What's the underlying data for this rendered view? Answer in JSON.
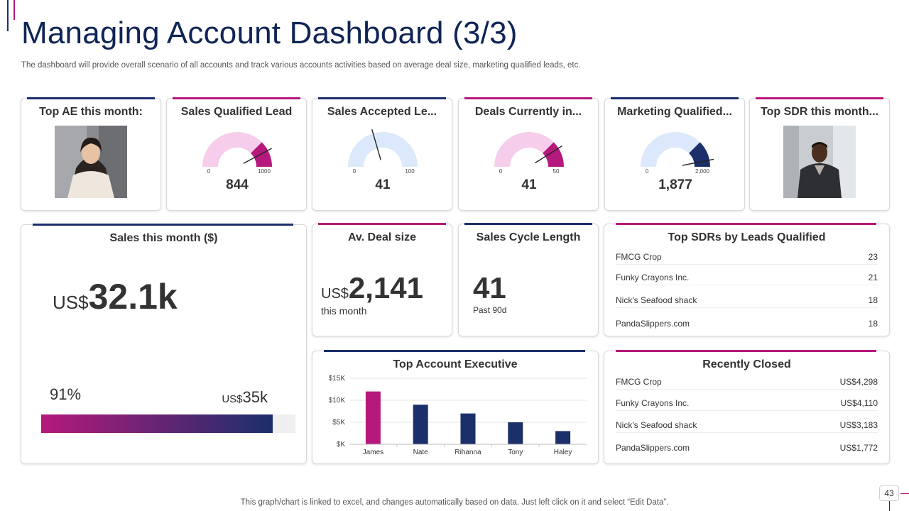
{
  "title": "Managing Account Dashboard (3/3)",
  "subtitle": "The dashboard will provide overall scenario of all accounts and track various accounts activities based on average deal size, marketing qualified leads, etc.",
  "colors": {
    "navy": "#1b2f6b",
    "pink": "#b5197c",
    "pink_light": "#f6cdea",
    "blue_light": "#dce8fb"
  },
  "top_ae": {
    "title": "Top AE this month:"
  },
  "sql": {
    "title": "Sales Qualified Lead",
    "value": "844",
    "min": "0",
    "max": "1000",
    "value_num": 844,
    "max_num": 1000
  },
  "sal": {
    "title": "Sales Accepted Le...",
    "value": "41",
    "min": "0",
    "max": "100",
    "value_num": 41,
    "max_num": 100
  },
  "deals": {
    "title": "Deals Currently in...",
    "value": "41",
    "min": "0",
    "max": "50",
    "value_num": 41,
    "max_num": 50
  },
  "mql": {
    "title": "Marketing Qualified...",
    "value": "1,877",
    "min": "0",
    "max": "2,000",
    "value_num": 1877,
    "max_num": 2000
  },
  "top_sdr": {
    "title": "Top SDR this month..."
  },
  "sales_month": {
    "title": "Sales this month ($)",
    "currency": "US$",
    "value": "32.1k",
    "percent": "91%",
    "percent_num": 91,
    "target_currency": "US$",
    "target": "35k"
  },
  "deal_size": {
    "title": "Av. Deal size",
    "currency": "US$",
    "value": "2,141",
    "sub": "this month"
  },
  "cycle": {
    "title": "Sales Cycle Length",
    "value": "41",
    "sub": "Past 90d"
  },
  "top_sdrs": {
    "title": "Top SDRs by Leads Qualified",
    "rows": [
      {
        "name": "FMCG Crop",
        "value": "23"
      },
      {
        "name": "Funky Crayons Inc.",
        "value": "21"
      },
      {
        "name": "Nick's Seafood shack",
        "value": "18"
      },
      {
        "name": "PandaSlippers.com",
        "value": "18"
      }
    ]
  },
  "recent": {
    "title": "Recently Closed",
    "rows": [
      {
        "name": "FMCG Crop",
        "value": "US$4,298"
      },
      {
        "name": "Funky Crayons Inc.",
        "value": "US$4,110"
      },
      {
        "name": "Nick's Seafood shack",
        "value": "US$3,183"
      },
      {
        "name": "PandaSlippers.com",
        "value": "US$1,772"
      }
    ]
  },
  "chart_data": {
    "type": "bar",
    "title": "Top Account Executive",
    "categories": [
      "James",
      "Nate",
      "Rihanna",
      "Tony",
      "Haley"
    ],
    "values": [
      12000,
      9000,
      7000,
      5000,
      3000
    ],
    "bar_colors": [
      "#b5197c",
      "#1b2f6b",
      "#1b2f6b",
      "#1b2f6b",
      "#1b2f6b"
    ],
    "yticks": [
      0,
      5000,
      10000,
      15000
    ],
    "ytick_labels": [
      "$K",
      "$5K",
      "$10K",
      "$15K"
    ],
    "ylim": [
      0,
      15000
    ],
    "xlabel": "",
    "ylabel": ""
  },
  "footer": "This graph/chart is linked to excel,  and changes automatically based on data. Just left click on it and select “Edit Data”.",
  "page_number": "43"
}
